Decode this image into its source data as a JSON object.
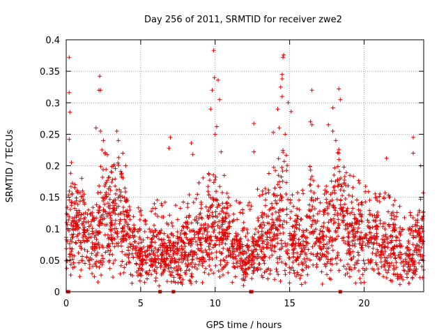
{
  "chart_data": {
    "type": "scatter",
    "title": "Day 256 of 2011, SRMTID for receiver zwe2",
    "xlabel": "GPS time / hours",
    "ylabel": "SRMTID / TECUs",
    "xlim": [
      0,
      24
    ],
    "ylim": [
      0,
      0.4
    ],
    "x_ticks": [
      0,
      5,
      10,
      15,
      20
    ],
    "x_tick_labels": [
      "0",
      "5",
      "10",
      "15",
      "20"
    ],
    "y_ticks": [
      0,
      0.05,
      0.1,
      0.15,
      0.2,
      0.25,
      0.3,
      0.35,
      0.4
    ],
    "y_tick_labels": [
      "0",
      "0.05",
      "0.1",
      "0.15",
      "0.2",
      "0.25",
      "0.3",
      "0.35",
      "0.4"
    ],
    "grid": true,
    "marker": "+",
    "color": "#e00000",
    "approximate_point_count": 2500,
    "series": [
      {
        "name": "SRMTID",
        "note": "dense scatter; representative points and activity envelope estimated from the figure",
        "activity_envelope": {
          "hours": [
            0,
            1,
            2,
            2.5,
            3,
            3.5,
            4,
            5,
            6,
            7,
            8,
            9,
            10,
            11,
            12,
            13,
            14,
            14.7,
            15,
            16,
            16.5,
            17,
            17.5,
            18,
            18.5,
            19,
            20,
            21,
            22,
            23,
            24
          ],
          "typical_tec": [
            0.09,
            0.1,
            0.06,
            0.11,
            0.1,
            0.12,
            0.09,
            0.05,
            0.06,
            0.05,
            0.06,
            0.08,
            0.1,
            0.08,
            0.04,
            0.07,
            0.1,
            0.11,
            0.07,
            0.07,
            0.1,
            0.07,
            0.08,
            0.11,
            0.12,
            0.09,
            0.08,
            0.07,
            0.07,
            0.05,
            0.08
          ],
          "upper_tec": [
            0.16,
            0.19,
            0.14,
            0.24,
            0.2,
            0.22,
            0.17,
            0.13,
            0.15,
            0.14,
            0.15,
            0.18,
            0.21,
            0.18,
            0.13,
            0.17,
            0.2,
            0.24,
            0.16,
            0.17,
            0.22,
            0.16,
            0.18,
            0.22,
            0.24,
            0.19,
            0.17,
            0.17,
            0.16,
            0.13,
            0.16
          ]
        },
        "highlight_points": [
          {
            "x": 0.2,
            "y": 0.372
          },
          {
            "x": 0.2,
            "y": 0.316
          },
          {
            "x": 0.25,
            "y": 0.285
          },
          {
            "x": 0.2,
            "y": 0.242
          },
          {
            "x": 0.35,
            "y": 0.205
          },
          {
            "x": 0.3,
            "y": 0.188
          },
          {
            "x": 2.25,
            "y": 0.342
          },
          {
            "x": 2.2,
            "y": 0.32
          },
          {
            "x": 2.3,
            "y": 0.32
          },
          {
            "x": 2.0,
            "y": 0.26
          },
          {
            "x": 2.3,
            "y": 0.255
          },
          {
            "x": 2.5,
            "y": 0.24
          },
          {
            "x": 2.4,
            "y": 0.225
          },
          {
            "x": 3.4,
            "y": 0.255
          },
          {
            "x": 3.5,
            "y": 0.24
          },
          {
            "x": 3.8,
            "y": 0.22
          },
          {
            "x": 4.0,
            "y": 0.2
          },
          {
            "x": 7.0,
            "y": 0.245
          },
          {
            "x": 6.9,
            "y": 0.228
          },
          {
            "x": 8.4,
            "y": 0.236
          },
          {
            "x": 8.5,
            "y": 0.218
          },
          {
            "x": 9.9,
            "y": 0.383
          },
          {
            "x": 9.95,
            "y": 0.34
          },
          {
            "x": 10.2,
            "y": 0.336
          },
          {
            "x": 10.3,
            "y": 0.305
          },
          {
            "x": 9.8,
            "y": 0.32
          },
          {
            "x": 9.7,
            "y": 0.29
          },
          {
            "x": 10.1,
            "y": 0.262
          },
          {
            "x": 10.0,
            "y": 0.25
          },
          {
            "x": 10.4,
            "y": 0.222
          },
          {
            "x": 12.6,
            "y": 0.267
          },
          {
            "x": 12.6,
            "y": 0.222
          },
          {
            "x": 14.5,
            "y": 0.345
          },
          {
            "x": 14.55,
            "y": 0.372
          },
          {
            "x": 14.6,
            "y": 0.376
          },
          {
            "x": 14.5,
            "y": 0.338
          },
          {
            "x": 14.4,
            "y": 0.325
          },
          {
            "x": 14.5,
            "y": 0.31
          },
          {
            "x": 14.2,
            "y": 0.29
          },
          {
            "x": 14.9,
            "y": 0.3
          },
          {
            "x": 15.1,
            "y": 0.286
          },
          {
            "x": 13.9,
            "y": 0.253
          },
          {
            "x": 14.3,
            "y": 0.26
          },
          {
            "x": 14.7,
            "y": 0.25
          },
          {
            "x": 16.5,
            "y": 0.32
          },
          {
            "x": 16.4,
            "y": 0.27
          },
          {
            "x": 16.5,
            "y": 0.265
          },
          {
            "x": 17.9,
            "y": 0.292
          },
          {
            "x": 18.3,
            "y": 0.322
          },
          {
            "x": 18.4,
            "y": 0.305
          },
          {
            "x": 17.6,
            "y": 0.265
          },
          {
            "x": 17.9,
            "y": 0.255
          },
          {
            "x": 18.1,
            "y": 0.24
          },
          {
            "x": 18.3,
            "y": 0.22
          },
          {
            "x": 23.3,
            "y": 0.245
          },
          {
            "x": 23.3,
            "y": 0.22
          },
          {
            "x": 21.5,
            "y": 0.212
          },
          {
            "x": 23.8,
            "y": 0.2
          }
        ],
        "zero_markers_x": [
          0.1,
          0.15,
          6.3,
          7.2,
          12.4,
          12.45,
          18.4
        ]
      }
    ]
  }
}
